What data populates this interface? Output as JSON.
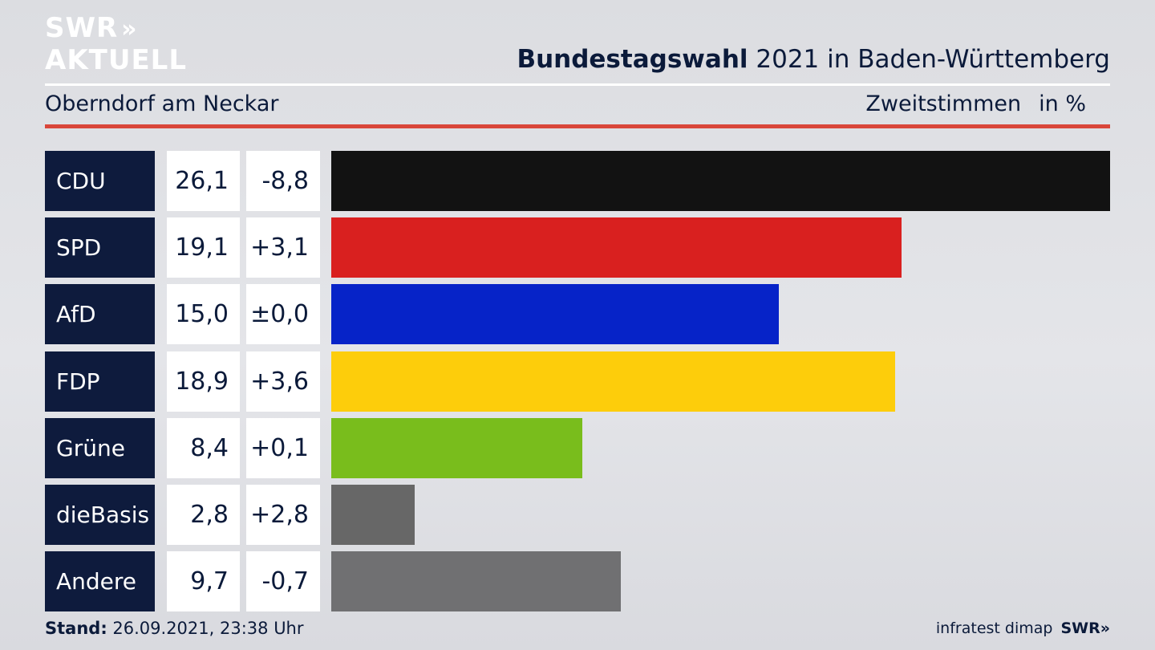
{
  "header": {
    "logo_line1": "SWR",
    "logo_chevrons": "»",
    "logo_line2": "AKTUELL",
    "title_bold": "Bundestagswahl",
    "title_rest": "2021 in Baden-Württemberg",
    "location": "Oberndorf am Neckar",
    "vote_type": "Zweitstimmen",
    "unit": "in %"
  },
  "chart_data": {
    "type": "bar",
    "orientation": "horizontal",
    "categories": [
      "CDU",
      "SPD",
      "AfD",
      "FDP",
      "Grüne",
      "dieBasis",
      "Andere"
    ],
    "series": [
      {
        "values": [
          26.1,
          19.1,
          15.0,
          18.9,
          8.4,
          2.8,
          9.7
        ],
        "labels": [
          "26,1",
          "19,1",
          "15,0",
          "18,9",
          "8,4",
          "2,8",
          "9,7"
        ]
      }
    ],
    "changes": [
      -8.8,
      3.1,
      0.0,
      3.6,
      0.1,
      2.8,
      -0.7
    ],
    "change_labels": [
      "-8,8",
      "+3,1",
      "±0,0",
      "+3,6",
      "+0,1",
      "+2,8",
      "-0,7"
    ],
    "colors": [
      "#121212",
      "#d9201f",
      "#0623c8",
      "#fdcd0b",
      "#79bd1c",
      "#676767",
      "#707072"
    ],
    "xlim": [
      0,
      26.1
    ],
    "grid": false,
    "legend": "none"
  },
  "footer": {
    "stand_label": "Stand:",
    "stand_value": "26.09.2021, 23:38 Uhr",
    "source": "infratest dimap",
    "brand": "SWR»"
  }
}
